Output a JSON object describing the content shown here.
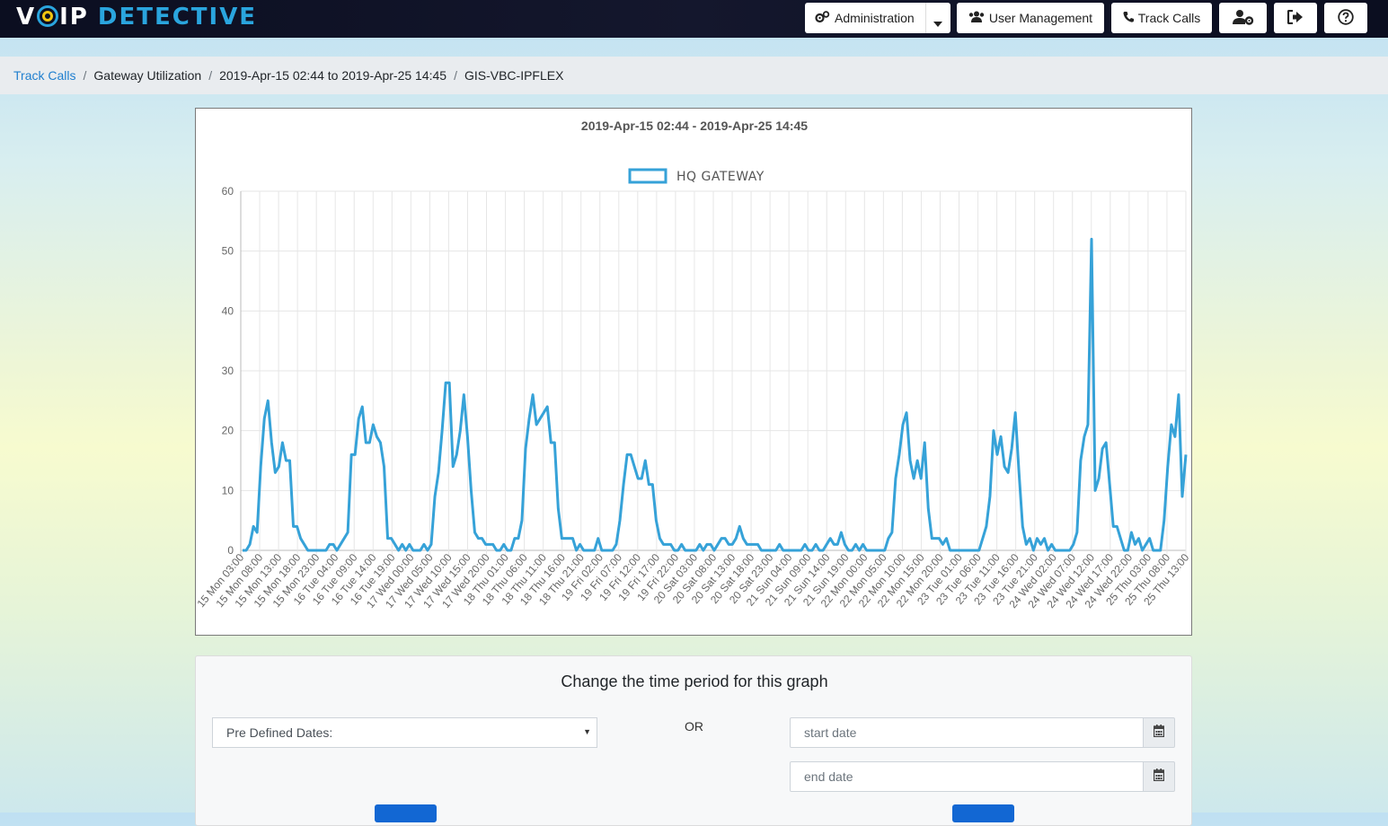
{
  "brand": {
    "part1": "V",
    "part2": "IP",
    "part3": "DETECTIVE"
  },
  "nav": {
    "administration": "Administration",
    "user_management": "User Management",
    "track_calls": "Track Calls"
  },
  "breadcrumb": {
    "item1": "Track Calls",
    "item2": "Gateway Utilization",
    "item3": "2019-Apr-15 02:44 to 2019-Apr-25 14:45",
    "item4": "GIS-VBC-IPFLEX"
  },
  "form": {
    "title": "Change the time period for this graph",
    "select_value": "Pre Defined Dates:",
    "or_label": "OR",
    "start_placeholder": "start date",
    "end_placeholder": "end date"
  },
  "colors": {
    "series": "#36a2d8",
    "nav_bg": "#0c0f22",
    "link": "#1f7fcf",
    "button": "#1267d3"
  },
  "chart_data": {
    "type": "line",
    "title": "2019-Apr-15 02:44 - 2019-Apr-25 14:45",
    "xlabel": "",
    "ylabel": "",
    "ylim": [
      0,
      60
    ],
    "yticks": [
      0,
      10,
      20,
      30,
      40,
      50,
      60
    ],
    "grid": true,
    "legend_position": "top",
    "x_tick_labels": [
      "15 Mon 03:00",
      "15 Mon 08:00",
      "15 Mon 13:00",
      "15 Mon 18:00",
      "15 Mon 23:00",
      "16 Tue 04:00",
      "16 Tue 09:00",
      "16 Tue 14:00",
      "16 Tue 19:00",
      "17 Wed 00:00",
      "17 Wed 05:00",
      "17 Wed 10:00",
      "17 Wed 15:00",
      "17 Wed 20:00",
      "18 Thu 01:00",
      "18 Thu 06:00",
      "18 Thu 11:00",
      "18 Thu 16:00",
      "18 Thu 21:00",
      "19 Fri 02:00",
      "19 Fri 07:00",
      "19 Fri 12:00",
      "19 Fri 17:00",
      "19 Fri 22:00",
      "20 Sat 03:00",
      "20 Sat 08:00",
      "20 Sat 13:00",
      "20 Sat 18:00",
      "20 Sat 23:00",
      "21 Sun 04:00",
      "21 Sun 09:00",
      "21 Sun 14:00",
      "21 Sun 19:00",
      "22 Mon 00:00",
      "22 Mon 05:00",
      "22 Mon 10:00",
      "22 Mon 15:00",
      "22 Mon 20:00",
      "23 Tue 01:00",
      "23 Tue 06:00",
      "23 Tue 11:00",
      "23 Tue 16:00",
      "23 Tue 21:00",
      "24 Wed 02:00",
      "24 Wed 07:00",
      "24 Wed 12:00",
      "24 Wed 17:00",
      "24 Wed 22:00",
      "25 Thu 03:00",
      "25 Thu 08:00",
      "25 Thu 13:00"
    ],
    "series": [
      {
        "name": "HQ GATEWAY",
        "values": [
          0,
          0,
          1,
          4,
          3,
          14,
          22,
          25,
          18,
          13,
          14,
          18,
          15,
          15,
          4,
          4,
          2,
          1,
          0,
          0,
          0,
          0,
          0,
          0,
          1,
          1,
          0,
          1,
          2,
          3,
          16,
          16,
          22,
          24,
          18,
          18,
          21,
          19,
          18,
          14,
          2,
          2,
          1,
          0,
          1,
          0,
          1,
          0,
          0,
          0,
          1,
          0,
          1,
          9,
          13,
          20,
          28,
          28,
          14,
          16,
          20,
          26,
          19,
          10,
          3,
          2,
          2,
          1,
          1,
          1,
          0,
          0,
          1,
          0,
          0,
          2,
          2,
          5,
          17,
          22,
          26,
          21,
          22,
          23,
          24,
          18,
          18,
          7,
          2,
          2,
          2,
          2,
          0,
          1,
          0,
          0,
          0,
          0,
          2,
          0,
          0,
          0,
          0,
          1,
          5,
          11,
          16,
          16,
          14,
          12,
          12,
          15,
          11,
          11,
          5,
          2,
          1,
          1,
          1,
          0,
          0,
          1,
          0,
          0,
          0,
          0,
          1,
          0,
          1,
          1,
          0,
          1,
          2,
          2,
          1,
          1,
          2,
          4,
          2,
          1,
          1,
          1,
          1,
          0,
          0,
          0,
          0,
          0,
          1,
          0,
          0,
          0,
          0,
          0,
          0,
          1,
          0,
          0,
          1,
          0,
          0,
          1,
          2,
          1,
          1,
          3,
          1,
          0,
          0,
          1,
          0,
          1,
          0,
          0,
          0,
          0,
          0,
          0,
          2,
          3,
          12,
          16,
          21,
          23,
          15,
          12,
          15,
          12,
          18,
          7,
          2,
          2,
          2,
          1,
          2,
          0,
          0,
          0,
          0,
          0,
          0,
          0,
          0,
          0,
          2,
          4,
          9,
          20,
          16,
          19,
          14,
          13,
          17,
          23,
          13,
          4,
          1,
          2,
          0,
          2,
          1,
          2,
          0,
          1,
          0,
          0,
          0,
          0,
          0,
          1,
          3,
          15,
          19,
          21,
          52,
          10,
          12,
          17,
          18,
          11,
          4,
          4,
          2,
          0,
          0,
          3,
          1,
          2,
          0,
          1,
          2,
          0,
          0,
          0,
          5,
          14,
          21,
          19,
          26,
          9,
          16
        ]
      }
    ]
  }
}
